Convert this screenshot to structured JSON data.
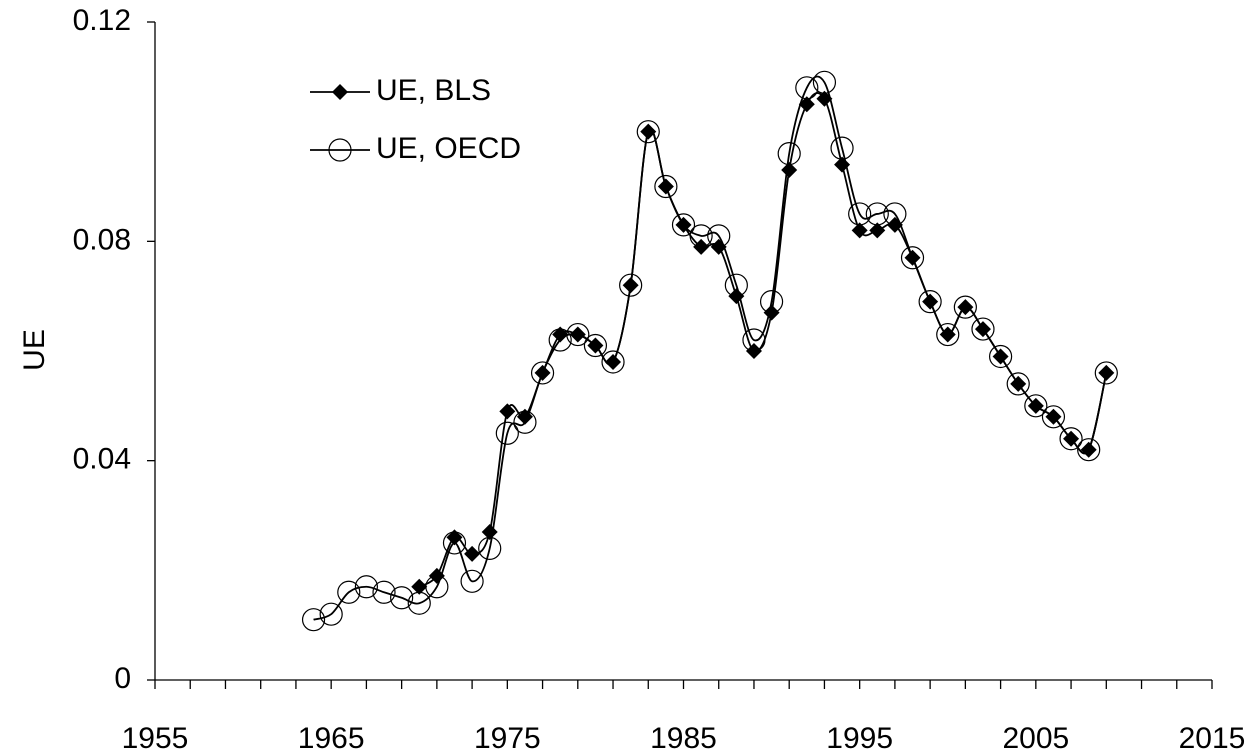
{
  "chart_data": {
    "type": "line",
    "y_label": "UE",
    "xlim": [
      1955,
      2015
    ],
    "xticks": [
      1955,
      1965,
      1975,
      1985,
      1995,
      2005,
      2015
    ],
    "xminor_ticks": [
      1957,
      1959,
      1961,
      1963,
      1967,
      1969,
      1971,
      1973,
      1977,
      1979,
      1981,
      1983,
      1987,
      1989,
      1991,
      1993,
      1997,
      1999,
      2001,
      2003,
      2007,
      2009,
      2011,
      2013
    ],
    "ylim": [
      0,
      0.12
    ],
    "yticks": [
      0,
      0.04,
      0.08,
      0.12
    ],
    "grid": false,
    "legend": "upper left",
    "series": [
      {
        "name": "UE, BLS",
        "color": "#000000",
        "marker": "diamond",
        "x": [
          1970,
          1971,
          1972,
          1973,
          1974,
          1975,
          1976,
          1977,
          1978,
          1979,
          1980,
          1981,
          1982,
          1983,
          1984,
          1985,
          1986,
          1987,
          1988,
          1989,
          1990,
          1991,
          1992,
          1993,
          1994,
          1995,
          1996,
          1997,
          1998,
          1999,
          2000,
          2001,
          2002,
          2003,
          2004,
          2005,
          2006,
          2007,
          2008,
          2009
        ],
        "values": [
          0.017,
          0.019,
          0.026,
          0.023,
          0.027,
          0.049,
          0.048,
          0.056,
          0.063,
          0.063,
          0.061,
          0.058,
          0.072,
          0.1,
          0.09,
          0.083,
          0.079,
          0.079,
          0.07,
          0.06,
          0.067,
          0.093,
          0.105,
          0.106,
          0.094,
          0.082,
          0.082,
          0.083,
          0.077,
          0.069,
          0.063,
          0.068,
          0.064,
          0.059,
          0.054,
          0.05,
          0.048,
          0.044,
          0.042,
          0.056
        ]
      },
      {
        "name": "UE, OECD",
        "color": "#000000",
        "marker": "circle",
        "x": [
          1964,
          1965,
          1966,
          1967,
          1968,
          1969,
          1970,
          1971,
          1972,
          1973,
          1974,
          1975,
          1976,
          1977,
          1978,
          1979,
          1980,
          1981,
          1982,
          1983,
          1984,
          1985,
          1986,
          1987,
          1988,
          1989,
          1990,
          1991,
          1992,
          1993,
          1994,
          1995,
          1996,
          1997,
          1998,
          1999,
          2000,
          2001,
          2002,
          2003,
          2004,
          2005,
          2006,
          2007,
          2008,
          2009
        ],
        "values": [
          0.011,
          0.012,
          0.016,
          0.017,
          0.016,
          0.015,
          0.014,
          0.017,
          0.025,
          0.018,
          0.024,
          0.045,
          0.047,
          0.056,
          0.062,
          0.063,
          0.061,
          0.058,
          0.072,
          0.1,
          0.09,
          0.083,
          0.081,
          0.081,
          0.072,
          0.062,
          0.069,
          0.096,
          0.108,
          0.109,
          0.097,
          0.085,
          0.085,
          0.085,
          0.077,
          0.069,
          0.063,
          0.068,
          0.064,
          0.059,
          0.054,
          0.05,
          0.048,
          0.044,
          0.042,
          0.056
        ]
      }
    ]
  }
}
